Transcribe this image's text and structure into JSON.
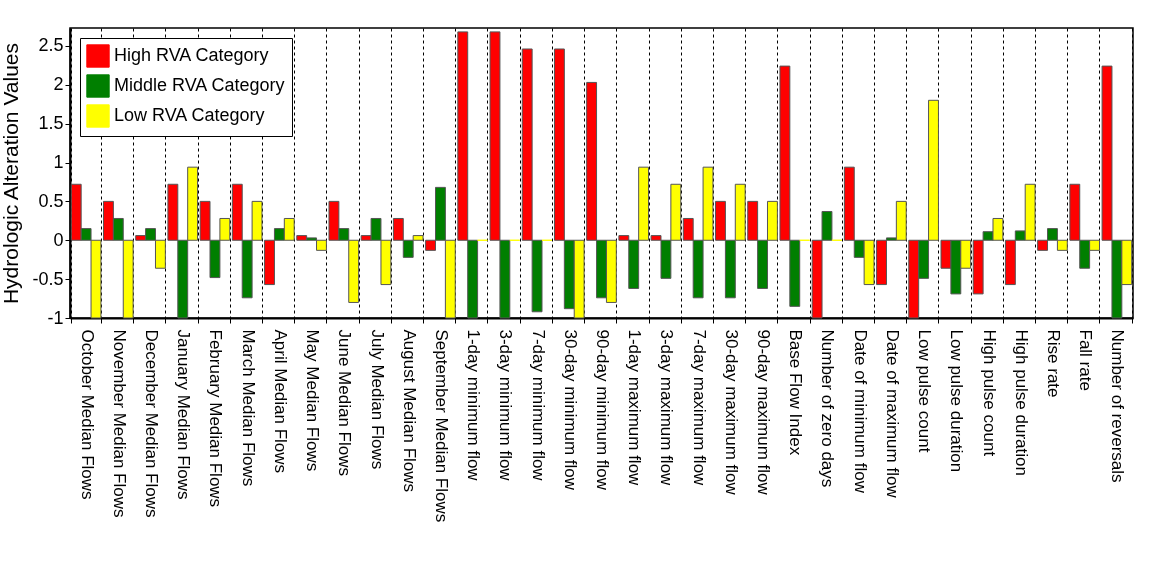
{
  "chart_data": {
    "type": "bar",
    "ylabel": "Hydrologic Alteration Values",
    "categories": [
      "October Median Flows",
      "November Median Flows",
      "December Median Flows",
      "January Median Flows",
      "February Median Flows",
      "March Median Flows",
      "April Median Flows",
      "May Median Flows",
      "June Median Flows",
      "July Median Flows",
      "August Median Flows",
      "September Median Flows",
      "1-day minimum flow",
      "3-day minimum flow",
      "7-day minimum flow",
      "30-day minimum flow",
      "90-day minimum flow",
      "1-day maximum flow",
      "3-day maximum flow",
      "7-day maximum flow",
      "30-day maximum flow",
      "90-day maximum flow",
      "Base Flow Index",
      "Number of zero days",
      "Date of minimum flow",
      "Date of maximum flow",
      "Low pulse count",
      "Low pulse duration",
      "High pulse count",
      "High pulse duration",
      "Rise rate",
      "Fall rate",
      "Number of reversals"
    ],
    "series": [
      {
        "name": "High RVA Category",
        "color": "#ff0000",
        "values": [
          0.72,
          0.5,
          0.06,
          0.72,
          0.5,
          0.72,
          -0.57,
          0.06,
          0.5,
          0.06,
          0.28,
          -0.13,
          2.68,
          2.68,
          2.46,
          2.46,
          2.03,
          0.06,
          0.06,
          0.28,
          0.5,
          0.5,
          2.24,
          -1,
          0.94,
          -0.57,
          -1,
          -0.36,
          -0.69,
          -0.57,
          -0.13,
          0.72,
          2.24
        ]
      },
      {
        "name": "Middle RVA Category",
        "color": "#007f00",
        "values": [
          0.15,
          0.28,
          0.15,
          -1,
          -0.48,
          -0.74,
          0.15,
          0.03,
          0.15,
          0.28,
          -0.22,
          0.68,
          -1,
          -1,
          -0.92,
          -0.88,
          -0.74,
          -0.62,
          -0.49,
          -0.74,
          -0.74,
          -0.62,
          -0.85,
          0.37,
          -0.22,
          0.03,
          -0.49,
          -0.69,
          0.11,
          0.12,
          0.15,
          -0.36,
          -1
        ]
      },
      {
        "name": "Low RVA Category",
        "color": "#ffff00",
        "values": [
          -1,
          -1,
          -0.36,
          0.94,
          0.28,
          0.5,
          0.28,
          -0.13,
          -0.8,
          -0.57,
          0.06,
          -1,
          0,
          0,
          0,
          -1,
          -0.8,
          0.94,
          0.72,
          0.94,
          0.72,
          0.5,
          0,
          0,
          -0.57,
          0.5,
          1.8,
          -0.36,
          0.28,
          0.72,
          -0.13,
          -0.13,
          -0.57
        ]
      }
    ],
    "ylim": [
      -1,
      2.73
    ],
    "yticks": [
      -1,
      -0.5,
      0,
      0.5,
      1,
      1.5,
      2,
      2.5
    ],
    "grid": "x",
    "legend": "top left"
  }
}
